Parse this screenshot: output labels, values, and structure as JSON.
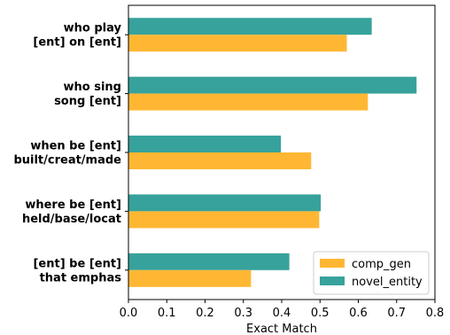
{
  "chart_data": {
    "type": "bar",
    "orientation": "horizontal",
    "categories": [
      [
        "who play",
        "[ent] on [ent]"
      ],
      [
        "who sing",
        "song [ent]"
      ],
      [
        "when be [ent]",
        "built/creat/made"
      ],
      [
        "where be [ent]",
        "held/base/locat"
      ],
      [
        "[ent] be [ent]",
        "that emphas"
      ]
    ],
    "series": [
      {
        "name": "comp_gen",
        "color": "#ffb733",
        "values": [
          0.57,
          0.625,
          0.477,
          0.498,
          0.32
        ]
      },
      {
        "name": "novel_entity",
        "color": "#36a29b",
        "values": [
          0.635,
          0.752,
          0.398,
          0.502,
          0.42
        ]
      }
    ],
    "xlabel": "Exact Match",
    "ylabel": "",
    "xlim": [
      0.0,
      0.8
    ],
    "xticks": [
      "0.0",
      "0.1",
      "0.2",
      "0.3",
      "0.4",
      "0.5",
      "0.6",
      "0.7",
      "0.8"
    ],
    "grid": false,
    "legend": "lower-right"
  }
}
